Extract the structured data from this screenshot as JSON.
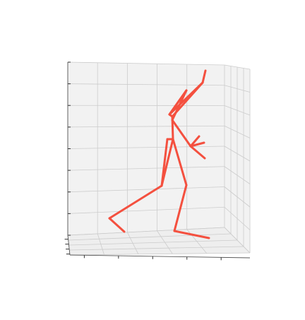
{
  "chart_data": {
    "type": "3d-line",
    "title": "",
    "xlabel": "",
    "ylabel": "",
    "zlabel": "",
    "tick_labels_visible": false,
    "grid": true,
    "pane_color": "#f2f2f2",
    "grid_color": "#cccccc",
    "series": [
      {
        "color": "#f4503f",
        "line_width": 3,
        "segments": [
          {
            "from": "hip",
            "to": "r_knee"
          },
          {
            "from": "r_knee",
            "to": "r_ankle"
          },
          {
            "from": "r_ankle",
            "to": "r_toe"
          },
          {
            "from": "hip",
            "to": "l_knee"
          },
          {
            "from": "l_knee",
            "to": "l_ankle"
          },
          {
            "from": "l_ankle",
            "to": "l_toe"
          },
          {
            "from": "hip",
            "to": "spine"
          },
          {
            "from": "spine",
            "to": "neck"
          },
          {
            "from": "neck",
            "to": "head"
          },
          {
            "from": "head",
            "to": "head_top"
          },
          {
            "from": "neck",
            "to": "shoulder"
          },
          {
            "from": "shoulder",
            "to": "elbow"
          },
          {
            "from": "elbow",
            "to": "wrist"
          },
          {
            "from": "wrist",
            "to": "finger_a"
          },
          {
            "from": "wrist",
            "to": "finger_b"
          },
          {
            "from": "wrist",
            "to": "finger_c"
          }
        ]
      }
    ]
  }
}
